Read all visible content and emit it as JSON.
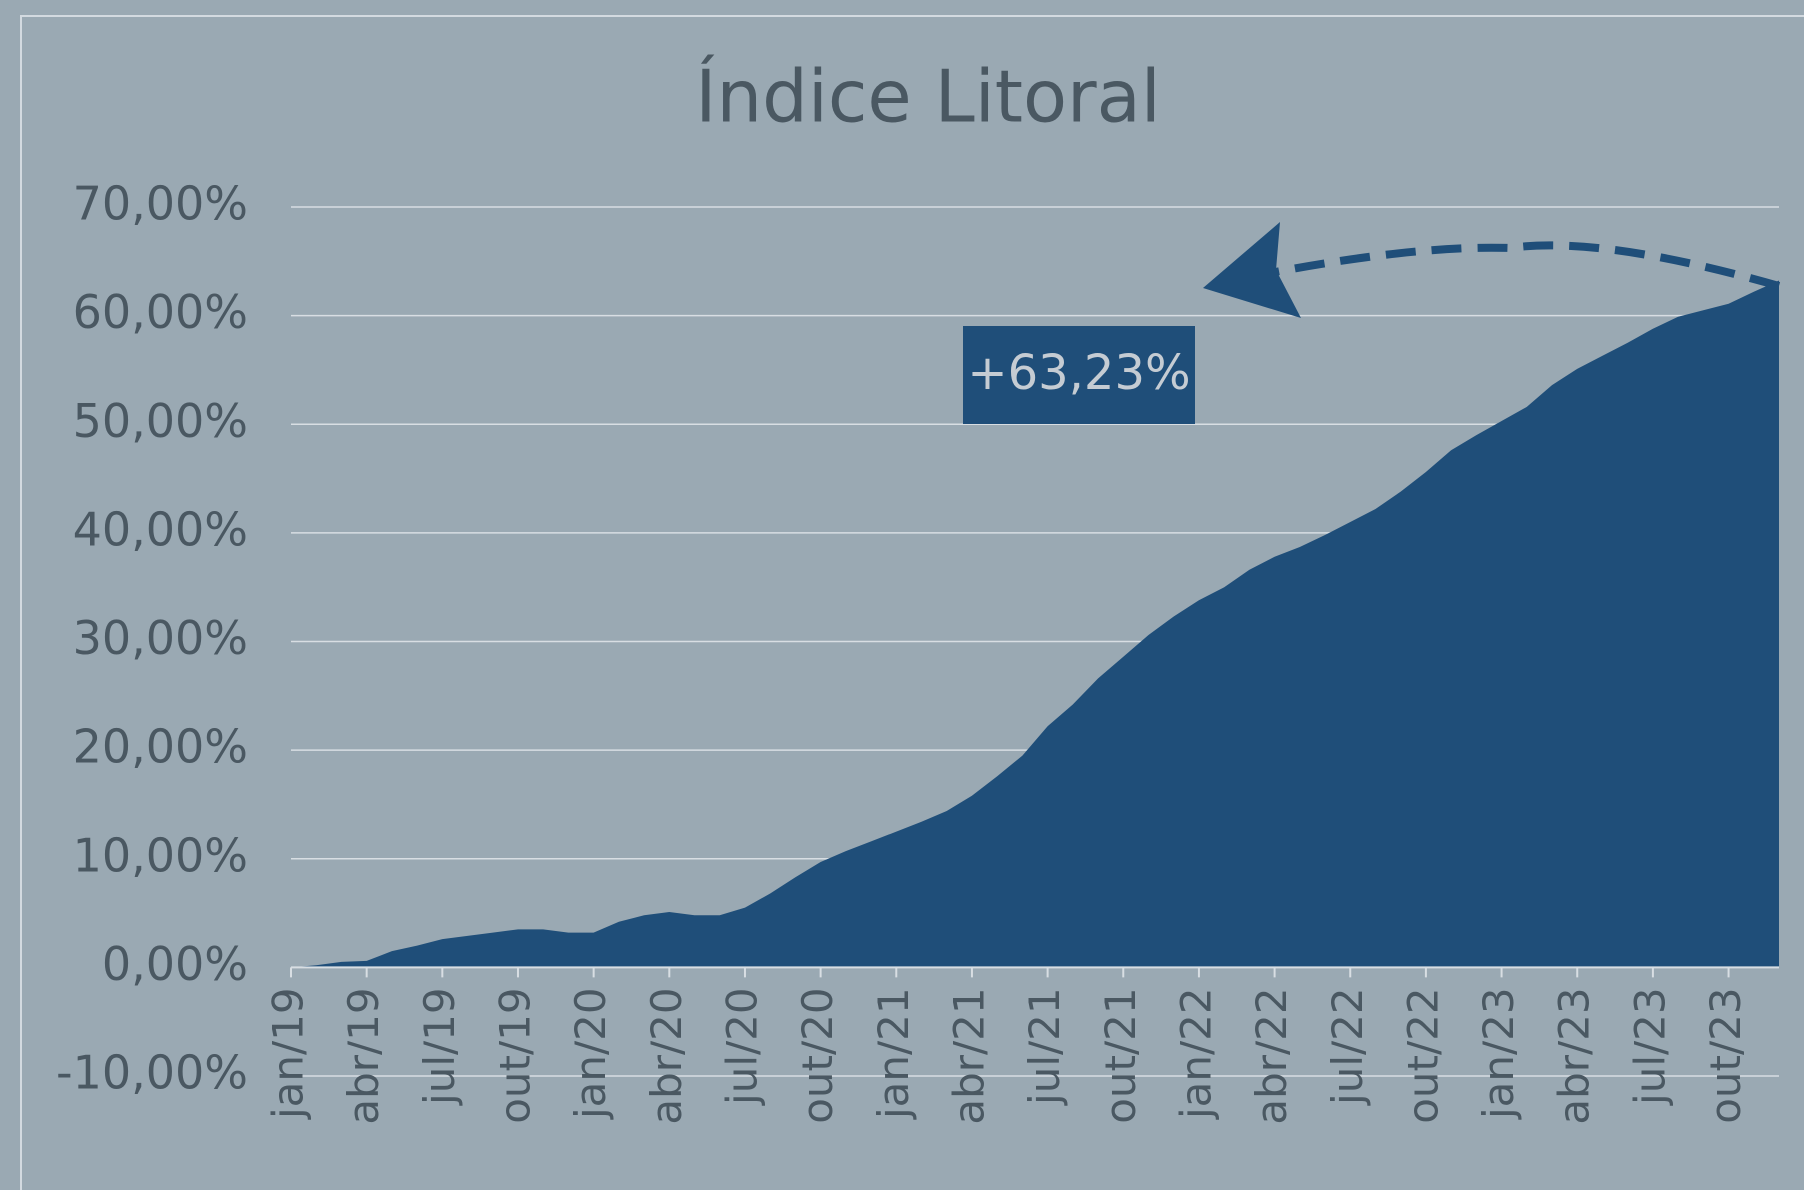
{
  "chart_data": {
    "type": "area",
    "title": "Índice Litoral",
    "categories": [
      "jan/19",
      null,
      null,
      "abr/19",
      null,
      null,
      "jul/19",
      null,
      null,
      "out/19",
      null,
      null,
      "jan/20",
      null,
      null,
      "abr/20",
      null,
      null,
      "jul/20",
      null,
      null,
      "out/20",
      null,
      null,
      "jan/21",
      null,
      null,
      "abr/21",
      null,
      null,
      "jul/21",
      null,
      null,
      "out/21",
      null,
      null,
      "jan/22",
      null,
      null,
      "abr/22",
      null,
      null,
      "jul/22",
      null,
      null,
      "out/22",
      null,
      null,
      "jan/23",
      null,
      null,
      "abr/23",
      null,
      null,
      "jul/23",
      null,
      null,
      "out/23",
      null,
      null
    ],
    "values": [
      0,
      0.2,
      0.5,
      0.6,
      1.5,
      2.0,
      2.6,
      2.9,
      3.2,
      3.5,
      3.5,
      3.2,
      3.2,
      4.2,
      4.8,
      5.1,
      4.8,
      4.8,
      5.5,
      6.8,
      8.3,
      9.7,
      10.7,
      11.6,
      12.5,
      13.4,
      14.4,
      15.8,
      17.6,
      19.5,
      22.2,
      24.2,
      26.6,
      28.6,
      30.6,
      32.3,
      33.8,
      35.0,
      36.6,
      37.8,
      38.7,
      39.8,
      41.0,
      42.2,
      43.8,
      45.6,
      47.6,
      49.0,
      50.3,
      51.6,
      53.6,
      55.1,
      56.3,
      57.5,
      58.8,
      59.9,
      60.5,
      61.1,
      62.2,
      63.23
    ],
    "color": "#1f4e79",
    "ylim": [
      -10,
      70
    ],
    "yticks": [
      {
        "value": -10,
        "label": "-10,00%"
      },
      {
        "value": 0,
        "label": "0,00%"
      },
      {
        "value": 10,
        "label": "10,00%"
      },
      {
        "value": 20,
        "label": "20,00%"
      },
      {
        "value": 30,
        "label": "30,00%"
      },
      {
        "value": 40,
        "label": "40,00%"
      },
      {
        "value": 50,
        "label": "50,00%"
      },
      {
        "value": 60,
        "label": "60,00%"
      },
      {
        "value": 70,
        "label": "70,00%"
      }
    ],
    "grid": true,
    "annotation": "+63,23%"
  }
}
